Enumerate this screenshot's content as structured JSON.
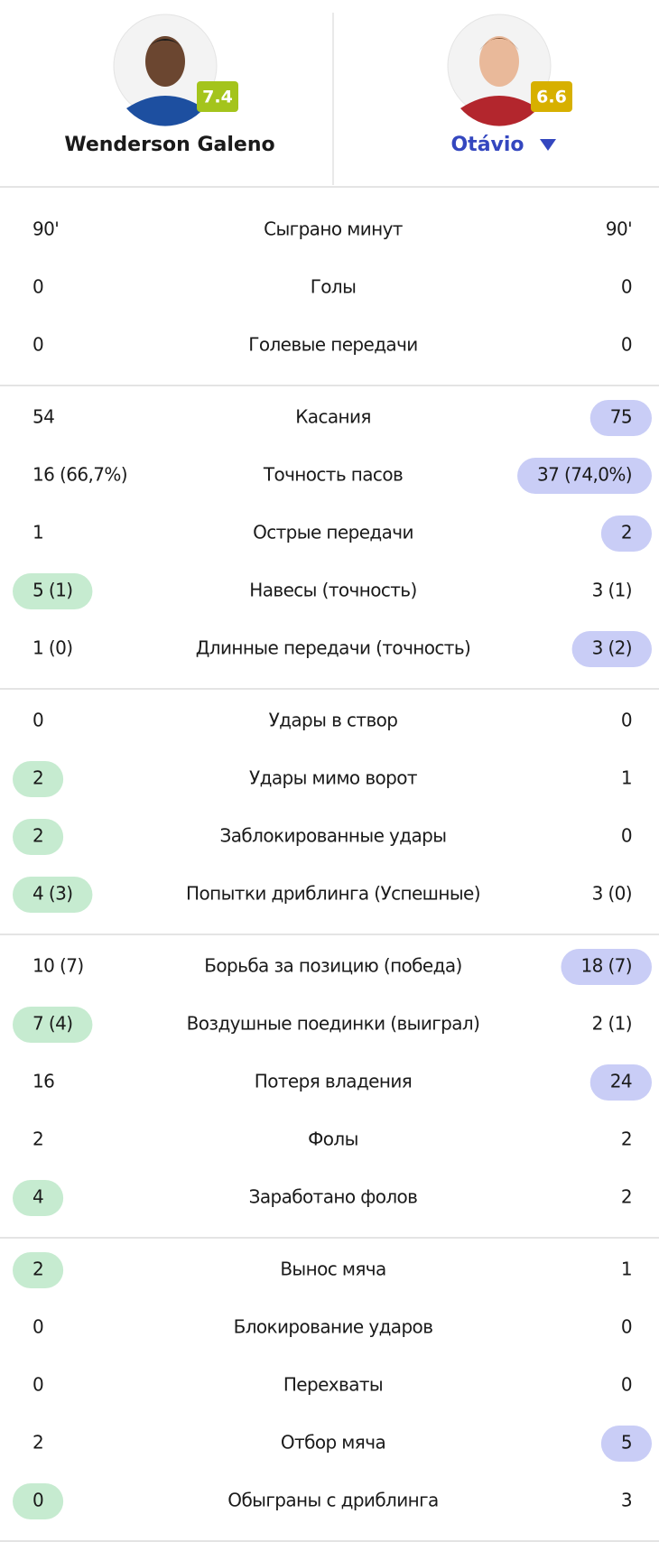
{
  "players": [
    {
      "name": "Wenderson Galeno",
      "rating": "7.4",
      "rating_color": "#a4c41c"
    },
    {
      "name": "Otávio",
      "rating": "6.6",
      "rating_color": "#d7b000"
    }
  ],
  "sections": [
    {
      "rows": [
        {
          "left": "90'",
          "label": "Сыграно минут",
          "right": "90'",
          "highlight": null
        },
        {
          "left": "0",
          "label": "Голы",
          "right": "0",
          "highlight": null
        },
        {
          "left": "0",
          "label": "Голевые передачи",
          "right": "0",
          "highlight": null
        }
      ]
    },
    {
      "rows": [
        {
          "left": "54",
          "label": "Касания",
          "right": "75",
          "highlight": "right"
        },
        {
          "left": "16 (66,7%)",
          "label": "Точность пасов",
          "right": "37 (74,0%)",
          "highlight": "right"
        },
        {
          "left": "1",
          "label": "Острые передачи",
          "right": "2",
          "highlight": "right"
        },
        {
          "left": "5 (1)",
          "label": "Навесы (точность)",
          "right": "3 (1)",
          "highlight": "left"
        },
        {
          "left": "1 (0)",
          "label": "Длинные передачи (точность)",
          "right": "3 (2)",
          "highlight": "right"
        }
      ]
    },
    {
      "rows": [
        {
          "left": "0",
          "label": "Удары в створ",
          "right": "0",
          "highlight": null
        },
        {
          "left": "2",
          "label": "Удары мимо ворот",
          "right": "1",
          "highlight": "left"
        },
        {
          "left": "2",
          "label": "Заблокированные удары",
          "right": "0",
          "highlight": "left"
        },
        {
          "left": "4 (3)",
          "label": "Попытки дриблинга (Успешные)",
          "right": "3 (0)",
          "highlight": "left"
        }
      ]
    },
    {
      "rows": [
        {
          "left": "10 (7)",
          "label": "Борьба за позицию (победа)",
          "right": "18 (7)",
          "highlight": "right"
        },
        {
          "left": "7 (4)",
          "label": "Воздушные поединки (выиграл)",
          "right": "2 (1)",
          "highlight": "left"
        },
        {
          "left": "16",
          "label": "Потеря владения",
          "right": "24",
          "highlight": "right"
        },
        {
          "left": "2",
          "label": "Фолы",
          "right": "2",
          "highlight": null
        },
        {
          "left": "4",
          "label": "Заработано фолов",
          "right": "2",
          "highlight": "left"
        }
      ]
    },
    {
      "rows": [
        {
          "left": "2",
          "label": "Вынос мяча",
          "right": "1",
          "highlight": "left"
        },
        {
          "left": "0",
          "label": "Блокирование ударов",
          "right": "0",
          "highlight": null
        },
        {
          "left": "0",
          "label": "Перехваты",
          "right": "0",
          "highlight": null
        },
        {
          "left": "2",
          "label": "Отбор мяча",
          "right": "5",
          "highlight": "right"
        },
        {
          "left": "0",
          "label": "Обыграны с дриблинга",
          "right": "3",
          "highlight": "left"
        }
      ]
    }
  ]
}
